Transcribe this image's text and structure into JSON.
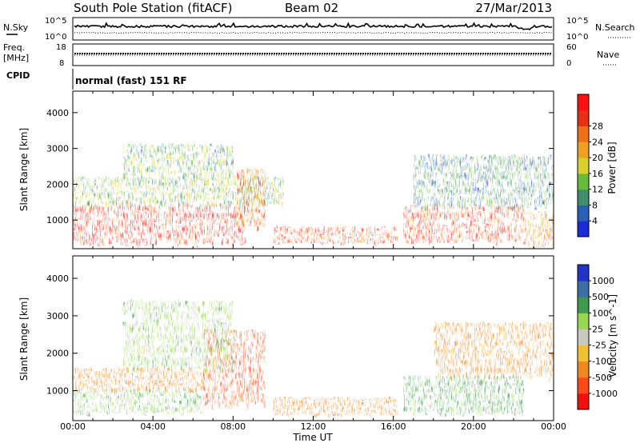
{
  "header": {
    "station": "South Pole Station (fitACF)",
    "beam": "Beam 02",
    "date": "27/Mar/2013"
  },
  "noise_panel": {
    "left_label": "N.Sky",
    "right_label": "N.Search",
    "left_ticks": [
      "10^5",
      "10^0"
    ],
    "right_ticks": [
      "10^5",
      "10^0"
    ]
  },
  "freq_panel": {
    "left_label_1": "Freq.",
    "left_label_2": "[MHz]",
    "right_label": "Nave",
    "left_ticks": [
      "18",
      "8"
    ],
    "right_ticks": [
      "60",
      "0"
    ]
  },
  "cpid": {
    "label": "CPID",
    "mode": "normal (fast) 151 RF"
  },
  "colors": {
    "power": [
      "#1a2bd8",
      "#2a5fb8",
      "#3f8f6f",
      "#66bb3a",
      "#d7d12a",
      "#f0a020",
      "#f0701a",
      "#e83018",
      "#ff1010"
    ],
    "velocity": [
      "#f01010",
      "#ff4a18",
      "#f08820",
      "#f0c030",
      "#c8c8c0",
      "#98d850",
      "#3f9a4f",
      "#3a6fa8",
      "#2034c8"
    ]
  },
  "chart_data": [
    {
      "type": "heatmap",
      "panel": "power",
      "ylabel": "Slant Range [km]",
      "ylim": [
        200,
        4600
      ],
      "y_ticks": [
        "1000",
        "2000",
        "3000",
        "4000"
      ],
      "xlim": [
        "00:00",
        "24:00"
      ],
      "colorbar_label": "Power [dB]",
      "colorbar_ticks": [
        "4",
        "8",
        "12",
        "16",
        "20",
        "24",
        "28"
      ],
      "colorbar_range": [
        0,
        30
      ],
      "echo_regions": [
        {
          "t_start": 0.0,
          "t_end": 8.6,
          "range_low": 350,
          "range_high": 1400,
          "power_db": 26
        },
        {
          "t_start": 0.0,
          "t_end": 10.5,
          "range_low": 1400,
          "range_high": 2200,
          "power_db": 12
        },
        {
          "t_start": 2.5,
          "t_end": 8.0,
          "range_low": 2200,
          "range_high": 3100,
          "power_db": 11
        },
        {
          "t_start": 8.2,
          "t_end": 9.6,
          "range_low": 800,
          "range_high": 2400,
          "power_db": 22
        },
        {
          "t_start": 10.0,
          "t_end": 16.2,
          "range_low": 350,
          "range_high": 800,
          "power_db": 24
        },
        {
          "t_start": 16.5,
          "t_end": 22.5,
          "range_low": 400,
          "range_high": 1400,
          "power_db": 24
        },
        {
          "t_start": 17.0,
          "t_end": 24.0,
          "range_low": 1400,
          "range_high": 2800,
          "power_db": 8
        },
        {
          "t_start": 22.5,
          "t_end": 24.0,
          "range_low": 300,
          "range_high": 1200,
          "power_db": 20
        }
      ]
    },
    {
      "type": "heatmap",
      "panel": "velocity",
      "ylabel": "Slant Range [km]",
      "xlabel": "Time UT",
      "ylim": [
        200,
        4600
      ],
      "y_ticks": [
        "1000",
        "2000",
        "3000",
        "4000"
      ],
      "x_ticks": [
        "00:00",
        "04:00",
        "08:00",
        "12:00",
        "16:00",
        "20:00",
        "00:00"
      ],
      "xlim": [
        "00:00",
        "24:00"
      ],
      "colorbar_label": "Velocity [m s^-1]",
      "colorbar_ticks": [
        "-1000",
        "-500",
        "-100",
        "-25",
        "25",
        "100",
        "500",
        "1000"
      ],
      "echo_regions": [
        {
          "t_start": 0.0,
          "t_end": 6.5,
          "range_low": 400,
          "range_high": 1000,
          "velocity": 80
        },
        {
          "t_start": 0.0,
          "t_end": 6.5,
          "range_low": 1000,
          "range_high": 1600,
          "velocity": -300
        },
        {
          "t_start": 6.5,
          "t_end": 9.6,
          "range_low": 600,
          "range_high": 2600,
          "velocity": -700
        },
        {
          "t_start": 2.5,
          "t_end": 8.0,
          "range_low": 1600,
          "range_high": 3400,
          "velocity": 60
        },
        {
          "t_start": 10.0,
          "t_end": 16.2,
          "range_low": 350,
          "range_high": 800,
          "velocity": -350
        },
        {
          "t_start": 16.5,
          "t_end": 22.5,
          "range_low": 400,
          "range_high": 1400,
          "velocity": 150
        },
        {
          "t_start": 18.0,
          "t_end": 24.0,
          "range_low": 1400,
          "range_high": 2800,
          "velocity": -200
        }
      ]
    }
  ]
}
